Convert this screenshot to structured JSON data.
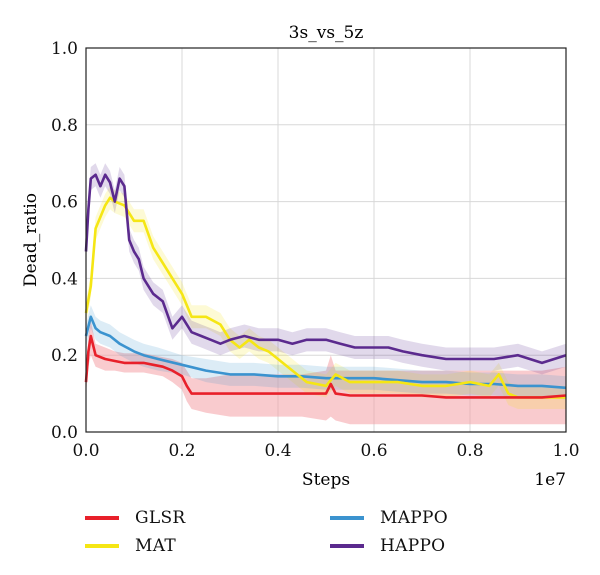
{
  "chart_data": {
    "type": "line",
    "title": "3s_vs_5z",
    "xlabel": "Steps",
    "ylabel": "Dead_ratio",
    "x_multiplier_label": "1e7",
    "xlim": [
      0.0,
      1.0
    ],
    "ylim": [
      0.0,
      1.0
    ],
    "xticks": [
      "0.0",
      "0.2",
      "0.4",
      "0.6",
      "0.8",
      "1.0"
    ],
    "yticks": [
      "0.0",
      "0.2",
      "0.4",
      "0.6",
      "0.8",
      "1.0"
    ],
    "grid": true,
    "legend_position": "bottom",
    "series": [
      {
        "name": "GLSR",
        "color": "#e8202a",
        "band_color": "#f4a0a6",
        "x": [
          0.0,
          0.005,
          0.01,
          0.02,
          0.04,
          0.06,
          0.08,
          0.1,
          0.12,
          0.14,
          0.16,
          0.18,
          0.2,
          0.21,
          0.22,
          0.25,
          0.3,
          0.35,
          0.4,
          0.45,
          0.5,
          0.51,
          0.52,
          0.55,
          0.6,
          0.65,
          0.7,
          0.75,
          0.8,
          0.85,
          0.9,
          0.92,
          0.95,
          1.0
        ],
        "values": [
          0.13,
          0.21,
          0.25,
          0.2,
          0.19,
          0.185,
          0.18,
          0.18,
          0.18,
          0.175,
          0.17,
          0.16,
          0.145,
          0.12,
          0.1,
          0.1,
          0.1,
          0.1,
          0.1,
          0.1,
          0.1,
          0.125,
          0.1,
          0.095,
          0.095,
          0.095,
          0.095,
          0.09,
          0.09,
          0.09,
          0.09,
          0.09,
          0.09,
          0.095
        ],
        "lower": [
          0.1,
          0.17,
          0.2,
          0.17,
          0.16,
          0.16,
          0.155,
          0.155,
          0.155,
          0.15,
          0.145,
          0.13,
          0.11,
          0.08,
          0.06,
          0.05,
          0.04,
          0.04,
          0.04,
          0.04,
          0.03,
          0.04,
          0.03,
          0.02,
          0.02,
          0.02,
          0.02,
          0.02,
          0.02,
          0.02,
          0.02,
          0.02,
          0.02,
          0.02
        ],
        "upper": [
          0.16,
          0.25,
          0.29,
          0.23,
          0.22,
          0.21,
          0.205,
          0.205,
          0.205,
          0.2,
          0.195,
          0.19,
          0.18,
          0.16,
          0.14,
          0.14,
          0.15,
          0.15,
          0.15,
          0.15,
          0.16,
          0.2,
          0.16,
          0.16,
          0.16,
          0.16,
          0.16,
          0.16,
          0.16,
          0.16,
          0.16,
          0.16,
          0.16,
          0.17
        ]
      },
      {
        "name": "MAT",
        "color": "#f5e614",
        "x": [
          0.0,
          0.01,
          0.02,
          0.03,
          0.04,
          0.05,
          0.06,
          0.08,
          0.1,
          0.12,
          0.14,
          0.16,
          0.18,
          0.2,
          0.22,
          0.25,
          0.28,
          0.3,
          0.32,
          0.34,
          0.36,
          0.38,
          0.4,
          0.43,
          0.46,
          0.5,
          0.52,
          0.55,
          0.6,
          0.65,
          0.7,
          0.75,
          0.8,
          0.84,
          0.86,
          0.88,
          0.9,
          0.95,
          1.0
        ],
        "values": [
          0.31,
          0.38,
          0.53,
          0.56,
          0.59,
          0.61,
          0.6,
          0.59,
          0.55,
          0.55,
          0.48,
          0.44,
          0.4,
          0.36,
          0.3,
          0.3,
          0.28,
          0.24,
          0.22,
          0.24,
          0.22,
          0.21,
          0.19,
          0.16,
          0.13,
          0.12,
          0.15,
          0.13,
          0.13,
          0.13,
          0.12,
          0.12,
          0.13,
          0.12,
          0.15,
          0.1,
          0.09,
          0.09,
          0.09
        ],
        "upper": [
          0.34,
          0.41,
          0.56,
          0.59,
          0.62,
          0.64,
          0.63,
          0.62,
          0.58,
          0.58,
          0.51,
          0.47,
          0.43,
          0.39,
          0.33,
          0.33,
          0.31,
          0.27,
          0.25,
          0.27,
          0.25,
          0.24,
          0.22,
          0.19,
          0.16,
          0.15,
          0.18,
          0.16,
          0.16,
          0.16,
          0.15,
          0.15,
          0.16,
          0.15,
          0.18,
          0.13,
          0.12,
          0.12,
          0.12
        ],
        "lower": [
          0.28,
          0.35,
          0.5,
          0.53,
          0.56,
          0.58,
          0.57,
          0.56,
          0.52,
          0.52,
          0.45,
          0.41,
          0.37,
          0.33,
          0.27,
          0.27,
          0.25,
          0.21,
          0.19,
          0.21,
          0.19,
          0.18,
          0.16,
          0.13,
          0.1,
          0.09,
          0.12,
          0.1,
          0.1,
          0.1,
          0.09,
          0.09,
          0.1,
          0.09,
          0.12,
          0.07,
          0.06,
          0.06,
          0.06
        ]
      },
      {
        "name": "MAPPO",
        "color": "#3b93cf",
        "x": [
          0.0,
          0.01,
          0.02,
          0.03,
          0.05,
          0.07,
          0.1,
          0.12,
          0.15,
          0.2,
          0.25,
          0.3,
          0.35,
          0.4,
          0.45,
          0.5,
          0.55,
          0.6,
          0.65,
          0.7,
          0.75,
          0.8,
          0.85,
          0.9,
          0.95,
          1.0
        ],
        "values": [
          0.25,
          0.3,
          0.27,
          0.26,
          0.25,
          0.23,
          0.21,
          0.2,
          0.19,
          0.175,
          0.16,
          0.15,
          0.15,
          0.145,
          0.145,
          0.14,
          0.14,
          0.14,
          0.135,
          0.13,
          0.13,
          0.125,
          0.125,
          0.12,
          0.12,
          0.115
        ],
        "upper": [
          0.28,
          0.33,
          0.3,
          0.29,
          0.28,
          0.26,
          0.24,
          0.23,
          0.22,
          0.2,
          0.19,
          0.18,
          0.18,
          0.175,
          0.175,
          0.17,
          0.17,
          0.17,
          0.165,
          0.16,
          0.16,
          0.155,
          0.155,
          0.15,
          0.15,
          0.145
        ],
        "lower": [
          0.22,
          0.27,
          0.24,
          0.23,
          0.22,
          0.2,
          0.18,
          0.17,
          0.16,
          0.15,
          0.13,
          0.12,
          0.12,
          0.115,
          0.115,
          0.11,
          0.11,
          0.11,
          0.105,
          0.1,
          0.1,
          0.095,
          0.095,
          0.09,
          0.09,
          0.085
        ]
      },
      {
        "name": "HAPPO",
        "color": "#5b2a8e",
        "x": [
          0.0,
          0.005,
          0.01,
          0.02,
          0.03,
          0.04,
          0.05,
          0.06,
          0.07,
          0.08,
          0.09,
          0.1,
          0.11,
          0.12,
          0.14,
          0.16,
          0.18,
          0.2,
          0.22,
          0.24,
          0.26,
          0.28,
          0.3,
          0.33,
          0.36,
          0.4,
          0.43,
          0.46,
          0.5,
          0.53,
          0.56,
          0.6,
          0.63,
          0.66,
          0.7,
          0.75,
          0.8,
          0.85,
          0.9,
          0.95,
          1.0
        ],
        "values": [
          0.47,
          0.58,
          0.66,
          0.67,
          0.64,
          0.67,
          0.65,
          0.6,
          0.66,
          0.64,
          0.5,
          0.47,
          0.45,
          0.4,
          0.36,
          0.34,
          0.27,
          0.3,
          0.26,
          0.25,
          0.24,
          0.23,
          0.24,
          0.25,
          0.24,
          0.24,
          0.23,
          0.24,
          0.24,
          0.23,
          0.22,
          0.22,
          0.22,
          0.21,
          0.2,
          0.19,
          0.19,
          0.19,
          0.2,
          0.18,
          0.2
        ],
        "upper": [
          0.5,
          0.61,
          0.69,
          0.7,
          0.67,
          0.7,
          0.68,
          0.63,
          0.69,
          0.67,
          0.53,
          0.5,
          0.48,
          0.43,
          0.39,
          0.37,
          0.3,
          0.33,
          0.29,
          0.28,
          0.27,
          0.26,
          0.27,
          0.28,
          0.27,
          0.27,
          0.26,
          0.27,
          0.27,
          0.26,
          0.25,
          0.25,
          0.25,
          0.24,
          0.23,
          0.22,
          0.22,
          0.22,
          0.23,
          0.21,
          0.23
        ],
        "lower": [
          0.44,
          0.55,
          0.63,
          0.64,
          0.61,
          0.64,
          0.62,
          0.57,
          0.63,
          0.61,
          0.47,
          0.44,
          0.42,
          0.37,
          0.33,
          0.31,
          0.24,
          0.27,
          0.23,
          0.22,
          0.21,
          0.2,
          0.21,
          0.22,
          0.21,
          0.21,
          0.2,
          0.21,
          0.21,
          0.2,
          0.19,
          0.19,
          0.19,
          0.18,
          0.17,
          0.16,
          0.16,
          0.16,
          0.17,
          0.15,
          0.17
        ]
      }
    ]
  },
  "legend": {
    "items": [
      {
        "label": "GLSR",
        "color": "#e8202a"
      },
      {
        "label": "MAT",
        "color": "#f5e614"
      },
      {
        "label": "MAPPO",
        "color": "#3b93cf"
      },
      {
        "label": "HAPPO",
        "color": "#5b2a8e"
      }
    ]
  }
}
